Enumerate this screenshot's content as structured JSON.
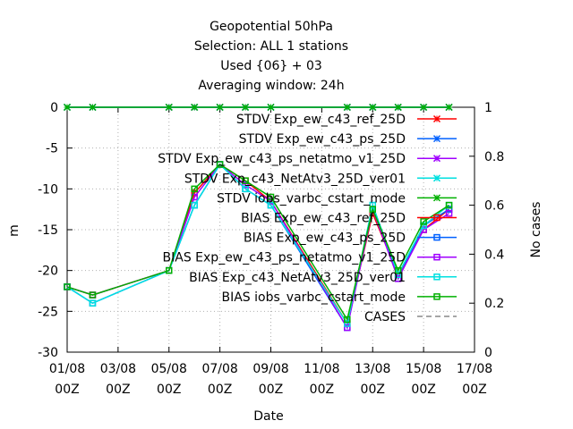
{
  "chart_data": {
    "type": "line",
    "title_lines": [
      "Geopotential 50hPa",
      "Selection: ALL      1 stations",
      "Used {06} + 03",
      "Averaging window: 24h"
    ],
    "xlabel": "Date",
    "ylabel": "m",
    "y2label": "No cases",
    "x_ticks": [
      {
        "day": 1,
        "line1": "01/08",
        "line2": "00Z"
      },
      {
        "day": 3,
        "line1": "03/08",
        "line2": "00Z"
      },
      {
        "day": 5,
        "line1": "05/08",
        "line2": "00Z"
      },
      {
        "day": 7,
        "line1": "07/08",
        "line2": "00Z"
      },
      {
        "day": 9,
        "line1": "09/08",
        "line2": "00Z"
      },
      {
        "day": 11,
        "line1": "11/08",
        "line2": "00Z"
      },
      {
        "day": 13,
        "line1": "13/08",
        "line2": "00Z"
      },
      {
        "day": 15,
        "line1": "15/08",
        "line2": "00Z"
      },
      {
        "day": 17,
        "line1": "17/08",
        "line2": "00Z"
      }
    ],
    "xlim": [
      1,
      17
    ],
    "ylim": [
      -30,
      0
    ],
    "y_ticks": [
      0,
      -5,
      -10,
      -15,
      -20,
      -25,
      -30
    ],
    "y2lim": [
      0,
      1
    ],
    "y2_ticks": [
      {
        "v": 1,
        "label": "1"
      },
      {
        "v": 0.8,
        "label": "0.8"
      },
      {
        "v": 0.6,
        "label": "0.6"
      },
      {
        "v": 0.4,
        "label": "0.4"
      },
      {
        "v": 0.2,
        "label": "0.2"
      },
      {
        "v": 0,
        "label": "0"
      }
    ],
    "grid": true,
    "legend_position": "top-right",
    "series": [
      {
        "name": "STDV Exp_ew_c43_ref_25D",
        "color": "#ff0000",
        "marker": "x",
        "axis": "y2",
        "x": [
          1,
          2,
          5,
          6,
          7,
          8,
          9,
          12,
          13,
          14,
          15,
          16
        ],
        "y": [
          1,
          1,
          1,
          1,
          1,
          1,
          1,
          1,
          1,
          1,
          1,
          1
        ]
      },
      {
        "name": "STDV Exp_ew_c43_ps_25D",
        "color": "#0060ff",
        "marker": "x",
        "axis": "y2",
        "x": [
          1,
          2,
          5,
          6,
          7,
          8,
          9,
          12,
          13,
          14,
          15,
          16
        ],
        "y": [
          1,
          1,
          1,
          1,
          1,
          1,
          1,
          1,
          1,
          1,
          1,
          1
        ]
      },
      {
        "name": "STDV Exp_ew_c43_ps_netatmo_v1_25D",
        "color": "#a000ff",
        "marker": "x",
        "axis": "y2",
        "x": [
          1,
          2,
          5,
          6,
          7,
          8,
          9,
          12,
          13,
          14,
          15,
          16
        ],
        "y": [
          1,
          1,
          1,
          1,
          1,
          1,
          1,
          1,
          1,
          1,
          1,
          1
        ]
      },
      {
        "name": "STDV Exp_c43_NetAtv3_25D_ver01",
        "color": "#00e0e0",
        "marker": "x",
        "axis": "y2",
        "x": [
          1,
          2,
          5,
          6,
          7,
          8,
          9,
          12,
          13,
          14,
          15,
          16
        ],
        "y": [
          1,
          1,
          1,
          1,
          1,
          1,
          1,
          1,
          1,
          1,
          1,
          1
        ]
      },
      {
        "name": "STDV iobs_varbc_cstart_mode",
        "color": "#00b000",
        "marker": "x",
        "axis": "y2",
        "x": [
          1,
          2,
          5,
          6,
          7,
          8,
          9,
          12,
          13,
          14,
          15,
          16
        ],
        "y": [
          1,
          1,
          1,
          1,
          1,
          1,
          1,
          1,
          1,
          1,
          1,
          1
        ]
      },
      {
        "name": "BIAS Exp_ew_c43_ref_25D",
        "color": "#ff0000",
        "marker": "square",
        "axis": "y",
        "x": [
          1,
          2,
          5,
          6,
          7,
          8,
          9,
          12,
          13,
          14,
          15,
          16
        ],
        "y": [
          -22,
          -23,
          -20,
          -10.5,
          -7,
          -9,
          -11.5,
          -26.5,
          -13,
          -20.5,
          -15,
          -12.5
        ]
      },
      {
        "name": "BIAS Exp_ew_c43_ps_25D",
        "color": "#0060ff",
        "marker": "square",
        "axis": "y",
        "x": [
          1,
          2,
          5,
          6,
          7,
          8,
          9,
          12,
          13,
          14,
          15,
          16
        ],
        "y": [
          -22,
          -24,
          -20,
          -12,
          -7,
          -10,
          -12,
          -27,
          -12,
          -21,
          -14.5,
          -12.5
        ]
      },
      {
        "name": "BIAS Exp_ew_c43_ps_netatmo_v1_25D",
        "color": "#a000ff",
        "marker": "square",
        "axis": "y",
        "x": [
          1,
          2,
          5,
          6,
          7,
          8,
          9,
          12,
          13,
          14,
          15,
          16
        ],
        "y": [
          -22,
          -23,
          -20,
          -11,
          -7,
          -9.5,
          -11.5,
          -27,
          -12.5,
          -21,
          -15,
          -13
        ]
      },
      {
        "name": "BIAS Exp_c43_NetAtv3_25D_ver01",
        "color": "#00e0e0",
        "marker": "square",
        "axis": "y",
        "x": [
          1,
          2,
          5,
          6,
          7,
          8,
          9,
          12,
          13,
          14,
          15,
          16
        ],
        "y": [
          -22,
          -24,
          -20,
          -12,
          -7,
          -10,
          -12,
          -26.5,
          -12,
          -20.5,
          -14.5,
          -12
        ]
      },
      {
        "name": "BIAS iobs_varbc_cstart_mode",
        "color": "#00b000",
        "marker": "square",
        "axis": "y",
        "x": [
          1,
          2,
          5,
          6,
          7,
          8,
          9,
          12,
          13,
          14,
          15,
          16
        ],
        "y": [
          -22,
          -23,
          -20,
          -10,
          -7,
          -9,
          -11,
          -26,
          -12.5,
          -20,
          -14,
          -12
        ]
      },
      {
        "name": "CASES",
        "color": "#888888",
        "marker": "none",
        "dash": true,
        "axis": "y2",
        "x": [],
        "y": []
      }
    ]
  }
}
